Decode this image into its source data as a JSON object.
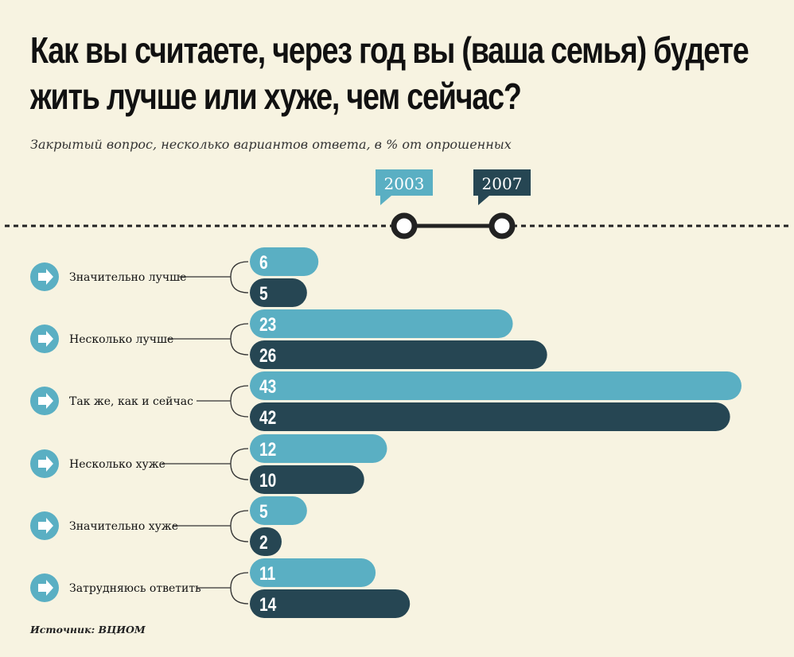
{
  "title": "Как вы считаете, через год вы (ваша семья) будете жить лучше или хуже, чем сейчас?",
  "subtitle": "Закрытый вопрос, несколько вариантов ответа, в % от опрошенных",
  "source": "Источник: ВЦИОМ",
  "colors": {
    "background": "#f7f3e1",
    "series_2003": "#5aafc3",
    "series_2007": "#264653",
    "text": "#111111"
  },
  "chart_data": {
    "type": "bar",
    "orientation": "horizontal",
    "title": "Как вы считаете, через год вы (ваша семья) будете жить лучше или хуже, чем сейчас?",
    "subtitle": "Закрытый вопрос, несколько вариантов ответа, в % от опрошенных",
    "categories": [
      "Значительно лучше",
      "Несколько лучше",
      "Так же, как и сейчас",
      "Несколько хуже",
      "Значительно хуже",
      "Затрудняюсь ответить"
    ],
    "series": [
      {
        "name": "2003",
        "color": "#5aafc3",
        "values": [
          6,
          23,
          43,
          12,
          5,
          11
        ]
      },
      {
        "name": "2007",
        "color": "#264653",
        "values": [
          5,
          26,
          42,
          10,
          2,
          14
        ]
      }
    ],
    "xlim": [
      0,
      43
    ],
    "legend_placement": "top",
    "grid": false
  }
}
